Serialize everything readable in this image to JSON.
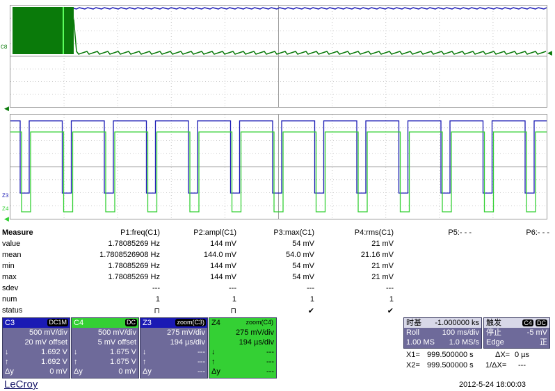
{
  "traces": {
    "top_label": "C8",
    "z3_label": "Z3",
    "z4_label": "Z4",
    "colors": {
      "blue": "#1a1ab4",
      "dark_green": "#0a7a0a",
      "light_green": "#34d034"
    }
  },
  "measure": {
    "title": "Measure",
    "columns": [
      "P1:freq(C1)",
      "P2:ampl(C1)",
      "P3:max(C1)",
      "P4:rms(C1)",
      "P5:- - -",
      "P6:- - -"
    ],
    "rows": [
      {
        "label": "value",
        "cells": [
          "1.78085269 Hz",
          "144 mV",
          "54 mV",
          "21 mV"
        ]
      },
      {
        "label": "mean",
        "cells": [
          "1.7808526908 Hz",
          "144.0 mV",
          "54.0 mV",
          "21.16 mV"
        ]
      },
      {
        "label": "min",
        "cells": [
          "1.78085269 Hz",
          "144 mV",
          "54 mV",
          "21 mV"
        ]
      },
      {
        "label": "max",
        "cells": [
          "1.78085269 Hz",
          "144 mV",
          "54 mV",
          "21 mV"
        ]
      },
      {
        "label": "sdev",
        "cells": [
          "---",
          "---",
          "---",
          "---"
        ]
      },
      {
        "label": "num",
        "cells": [
          "1",
          "1",
          "1",
          "1"
        ]
      },
      {
        "label": "status",
        "cells": [
          "⊓",
          "⊓",
          "✔",
          "✔"
        ]
      }
    ]
  },
  "channels": [
    {
      "name": "C3",
      "badge": "DC1M",
      "color": "#1a1ab4",
      "vdiv": "500 mV/div",
      "offset": "20 mV offset",
      "r1k": "↓",
      "r1v": "1.692 V",
      "r2k": "↑",
      "r2v": "1.692 V",
      "r3k": "Δy",
      "r3v": "0 mV"
    },
    {
      "name": "C4",
      "badge": "DC",
      "color": "#34d034",
      "vdiv": "500 mV/div",
      "offset": "5 mV offset",
      "r1k": "↓",
      "r1v": "1.675 V",
      "r2k": "↑",
      "r2v": "1.675 V",
      "r3k": "Δy",
      "r3v": "0 mV"
    },
    {
      "name": "Z3",
      "badge": "zoom(C3)",
      "color": "#1a1ab4",
      "vdiv": "275 mV/div",
      "offset": "194 µs/div",
      "r1k": "↓",
      "r1v": "---",
      "r2k": "↑",
      "r2v": "---",
      "r3k": "Δy",
      "r3v": "---"
    },
    {
      "name": "Z4",
      "badge": "zoom(C4)",
      "color": "#34d034",
      "vdiv": "275 mV/div",
      "offset": "194 µs/div",
      "r1k": "↓",
      "r1v": "---",
      "r2k": "↑",
      "r2v": "---",
      "r3k": "Δy",
      "r3v": "---"
    }
  ],
  "timebase": {
    "title": "时基",
    "delay": "-1.000000 ks",
    "mode": "Roll",
    "tdiv": "100 ms/div",
    "samples": "1.00 MS",
    "rate": "1.0 MS/s"
  },
  "trigger": {
    "title": "触发",
    "src": "C4",
    "coupling": "DC",
    "state": "停止",
    "level": "-5 mV",
    "type": "Edge",
    "slope": "正"
  },
  "cursors": {
    "x1": "X1=",
    "x1v": "999.500000 s",
    "dx": "ΔX=",
    "dxv": "0 µs",
    "x2": "X2=",
    "x2v": "999.500000 s",
    "idx": "1/ΔX=",
    "idxv": "---"
  },
  "footer": {
    "brand": "LeCroy",
    "datetime": "2012-5-24 18:00:03"
  }
}
